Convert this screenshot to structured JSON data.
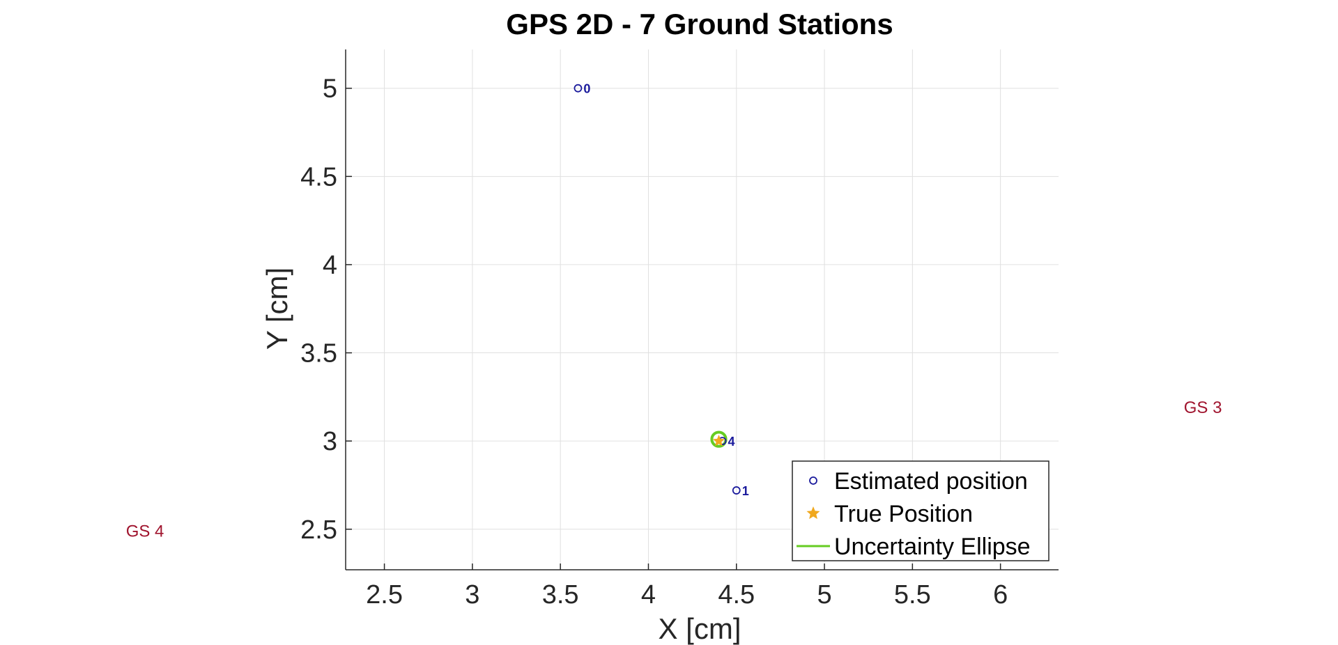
{
  "chart_data": {
    "type": "scatter",
    "title": "GPS 2D - 7 Ground Stations",
    "xlabel": "X [cm]",
    "ylabel": "Y [cm]",
    "xlim": [
      2.28,
      6.33
    ],
    "ylim": [
      2.27,
      5.22
    ],
    "xticks": [
      2.5,
      3,
      3.5,
      4,
      4.5,
      5,
      5.5,
      6
    ],
    "xtick_labels": [
      "2.5",
      "3",
      "3.5",
      "4",
      "4.5",
      "5",
      "5.5",
      "6"
    ],
    "yticks": [
      2.5,
      3,
      3.5,
      4,
      4.5,
      5
    ],
    "ytick_labels": [
      "2.5",
      "3",
      "3.5",
      "4",
      "4.5",
      "5"
    ],
    "grid": true,
    "legend_position": "bottom-right",
    "legend": [
      "Estimated position",
      "True Position",
      "Uncertainty Ellipse"
    ],
    "colors": {
      "estimated": "#1a1a9c",
      "true": "#f0a81e",
      "ellipse": "#66cc22",
      "ground_station": "#a0142e",
      "axis": "#262626",
      "grid": "#e0e0e0"
    },
    "series": [
      {
        "name": "Estimated position",
        "marker": "circle",
        "points": [
          {
            "x": 3.6,
            "y": 5.0,
            "label": "0"
          },
          {
            "x": 4.5,
            "y": 2.72,
            "label": "1"
          },
          {
            "x": 4.42,
            "y": 3.0,
            "label": "4"
          }
        ]
      },
      {
        "name": "True Position",
        "marker": "star",
        "points": [
          {
            "x": 4.4,
            "y": 3.0
          }
        ]
      },
      {
        "name": "Uncertainty Ellipse",
        "type": "ellipse",
        "center": [
          4.4,
          3.01
        ],
        "radius": [
          0.04,
          0.04
        ]
      }
    ],
    "annotations": [
      {
        "text": "GS 3",
        "x": 7.15,
        "y": 3.19
      },
      {
        "text": "GS 4",
        "x": 1.14,
        "y": 2.49
      }
    ]
  }
}
